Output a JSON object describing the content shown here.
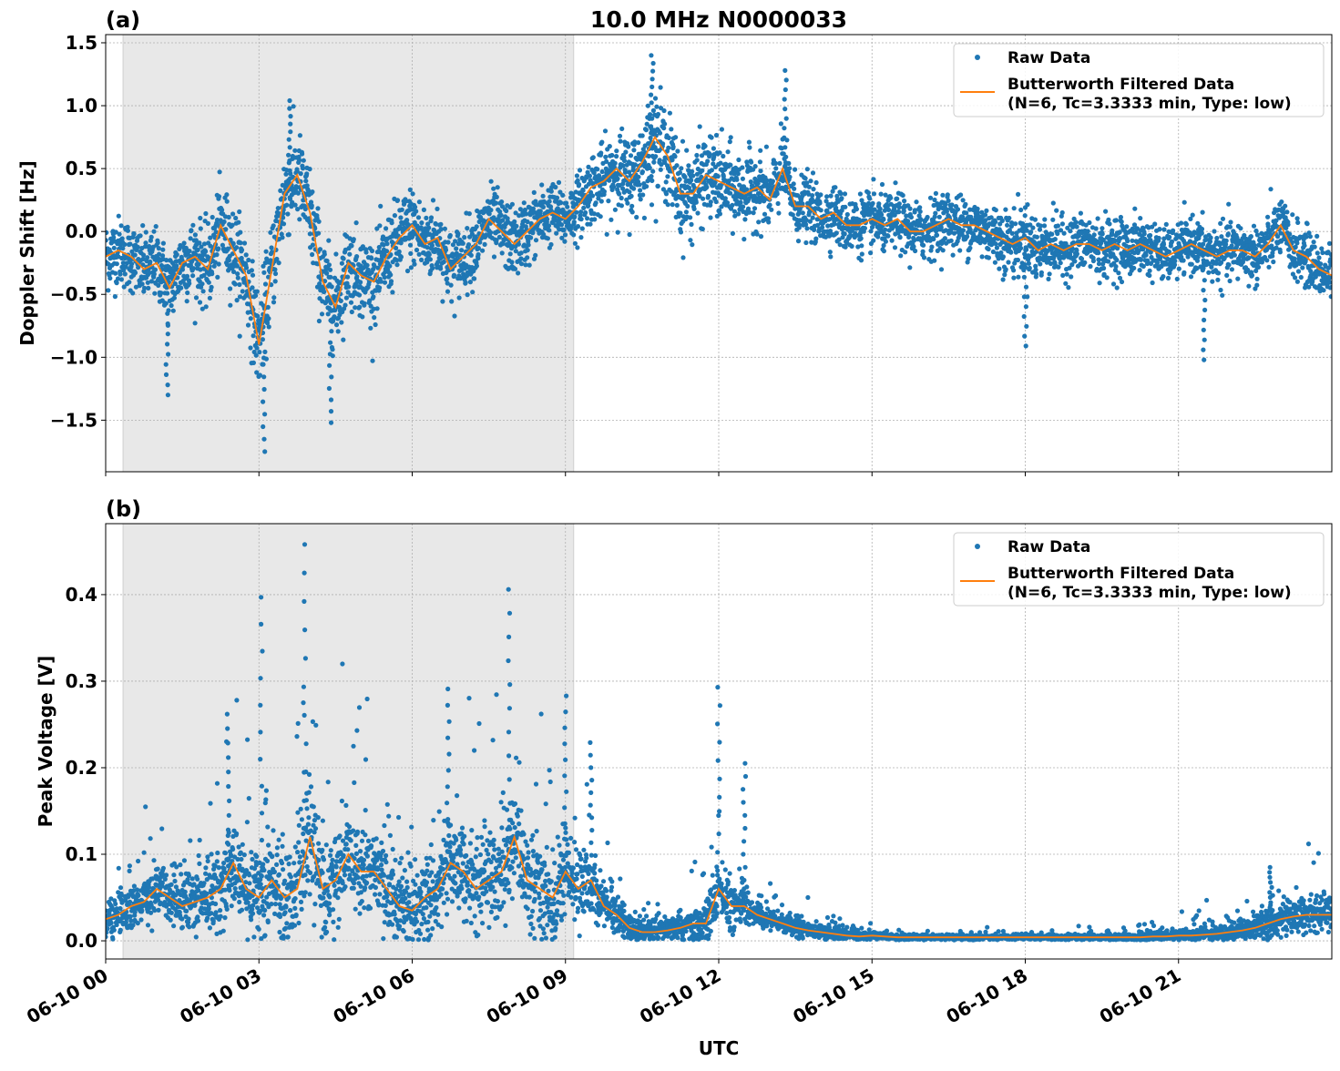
{
  "chart_data": [
    {
      "type": "scatter",
      "panel_label": "(a)",
      "title": "10.0 MHz N0000033",
      "xlabel": "",
      "ylabel": "Doppler Shift [Hz]",
      "xlim_hours": [
        0,
        24
      ],
      "ylim": [
        -1.91,
        1.565
      ],
      "x_ticks": [
        "06-10 00",
        "06-10 03",
        "06-10 06",
        "06-10 09",
        "06-10 12",
        "06-10 15",
        "06-10 18",
        "06-10 21"
      ],
      "y_ticks": [
        "−1.5",
        "−1.0",
        "−0.5",
        "0.0",
        "0.5",
        "1.0",
        "1.5"
      ],
      "y_tick_values": [
        -1.5,
        -1.0,
        -0.5,
        0.0,
        0.5,
        1.0,
        1.5
      ],
      "grid": true,
      "legend_placement": "top-right",
      "shaded_span_hours": [
        0.34,
        9.16
      ],
      "series": [
        {
          "name": "Raw Data",
          "kind": "points",
          "color": "#1f77b4",
          "spread_hourly": [
            0.3,
            0.3,
            0.35,
            0.4,
            0.4,
            0.35,
            0.35,
            0.3,
            0.3,
            0.25,
            0.35,
            0.4,
            0.35,
            0.3,
            0.25,
            0.25,
            0.25,
            0.25,
            0.3,
            0.25,
            0.25,
            0.22,
            0.25,
            0.25,
            0.25
          ],
          "extremes": [
            [
              3.1,
              -1.75
            ],
            [
              4.4,
              -1.52
            ],
            [
              10.7,
              1.4
            ],
            [
              13.3,
              1.28
            ],
            [
              3.6,
              1.04
            ],
            [
              1.2,
              -1.3
            ],
            [
              21.5,
              -1.02
            ],
            [
              18.0,
              -0.91
            ]
          ]
        },
        {
          "name": "Butterworth Filtered Data\n(N=6, Tc=3.3333 min, Type: low)",
          "kind": "line",
          "color": "#ff7f0e",
          "x_step_hours": 0.25,
          "values": [
            -0.2,
            -0.15,
            -0.2,
            -0.3,
            -0.25,
            -0.45,
            -0.25,
            -0.2,
            -0.3,
            0.05,
            -0.15,
            -0.35,
            -0.9,
            -0.3,
            0.3,
            0.45,
            0.15,
            -0.4,
            -0.6,
            -0.25,
            -0.35,
            -0.4,
            -0.2,
            -0.05,
            0.05,
            -0.1,
            -0.05,
            -0.3,
            -0.2,
            -0.1,
            0.1,
            0.0,
            -0.1,
            0.0,
            0.1,
            0.15,
            0.1,
            0.2,
            0.35,
            0.4,
            0.5,
            0.4,
            0.55,
            0.75,
            0.6,
            0.3,
            0.3,
            0.45,
            0.4,
            0.35,
            0.3,
            0.35,
            0.25,
            0.5,
            0.2,
            0.2,
            0.1,
            0.15,
            0.05,
            0.05,
            0.1,
            0.05,
            0.1,
            0.0,
            0.0,
            0.05,
            0.1,
            0.05,
            0.05,
            0.0,
            -0.05,
            -0.1,
            -0.05,
            -0.15,
            -0.1,
            -0.15,
            -0.1,
            -0.1,
            -0.15,
            -0.1,
            -0.15,
            -0.1,
            -0.15,
            -0.2,
            -0.15,
            -0.1,
            -0.15,
            -0.2,
            -0.15,
            -0.15,
            -0.2,
            -0.1,
            0.05,
            -0.15,
            -0.2,
            -0.3,
            -0.35
          ]
        }
      ]
    },
    {
      "type": "scatter",
      "panel_label": "(b)",
      "xlabel": "UTC",
      "ylabel": "Peak Voltage [V]",
      "xlim_hours": [
        0,
        24
      ],
      "ylim": [
        -0.021,
        0.482
      ],
      "x_ticks": [
        "06-10 00",
        "06-10 03",
        "06-10 06",
        "06-10 09",
        "06-10 12",
        "06-10 15",
        "06-10 18",
        "06-10 21"
      ],
      "y_ticks": [
        "0.0",
        "0.1",
        "0.2",
        "0.3",
        "0.4"
      ],
      "y_tick_values": [
        0.0,
        0.1,
        0.2,
        0.3,
        0.4
      ],
      "grid": true,
      "legend_placement": "top-right",
      "shaded_span_hours": [
        0.34,
        9.16
      ],
      "series": [
        {
          "name": "Raw Data",
          "kind": "points",
          "color": "#1f77b4",
          "spread_hourly": [
            0.02,
            0.03,
            0.04,
            0.05,
            0.06,
            0.05,
            0.05,
            0.05,
            0.06,
            0.05,
            0.02,
            0.012,
            0.03,
            0.015,
            0.008,
            0.004,
            0.003,
            0.003,
            0.003,
            0.003,
            0.004,
            0.006,
            0.01,
            0.02,
            0.02
          ],
          "extremes": [
            [
              3.05,
              0.397
            ],
            [
              3.9,
              0.458
            ],
            [
              7.9,
              0.406
            ],
            [
              9.0,
              0.283
            ],
            [
              12.0,
              0.293
            ],
            [
              2.4,
              0.262
            ],
            [
              6.7,
              0.291
            ],
            [
              9.5,
              0.229
            ],
            [
              12.5,
              0.205
            ],
            [
              22.8,
              0.085
            ]
          ]
        },
        {
          "name": "Butterworth Filtered Data\n(N=6, Tc=3.3333 min, Type: low)",
          "kind": "line",
          "color": "#ff7f0e",
          "x_step_hours": 0.25,
          "values": [
            0.025,
            0.03,
            0.04,
            0.045,
            0.06,
            0.05,
            0.04,
            0.045,
            0.05,
            0.06,
            0.09,
            0.06,
            0.05,
            0.07,
            0.05,
            0.06,
            0.12,
            0.06,
            0.07,
            0.1,
            0.08,
            0.08,
            0.06,
            0.04,
            0.035,
            0.05,
            0.06,
            0.09,
            0.08,
            0.06,
            0.07,
            0.08,
            0.12,
            0.07,
            0.06,
            0.05,
            0.08,
            0.06,
            0.07,
            0.04,
            0.03,
            0.015,
            0.01,
            0.01,
            0.012,
            0.015,
            0.02,
            0.02,
            0.06,
            0.04,
            0.04,
            0.03,
            0.025,
            0.02,
            0.015,
            0.012,
            0.01,
            0.008,
            0.006,
            0.005,
            0.006,
            0.005,
            0.004,
            0.004,
            0.004,
            0.004,
            0.004,
            0.004,
            0.004,
            0.004,
            0.004,
            0.004,
            0.004,
            0.004,
            0.004,
            0.004,
            0.004,
            0.004,
            0.004,
            0.004,
            0.004,
            0.004,
            0.005,
            0.005,
            0.006,
            0.006,
            0.007,
            0.008,
            0.01,
            0.012,
            0.015,
            0.02,
            0.025,
            0.028,
            0.03,
            0.03,
            0.03
          ]
        }
      ]
    }
  ],
  "legend": {
    "raw": "Raw Data",
    "filtered_line1": "Butterworth Filtered Data",
    "filtered_line2": "(N=6, Tc=3.3333 min, Type: low)"
  },
  "colors": {
    "raw": "#1f77b4",
    "filtered": "#ff7f0e",
    "shade": "#e8e8e8",
    "grid": "#b0b0b0"
  }
}
